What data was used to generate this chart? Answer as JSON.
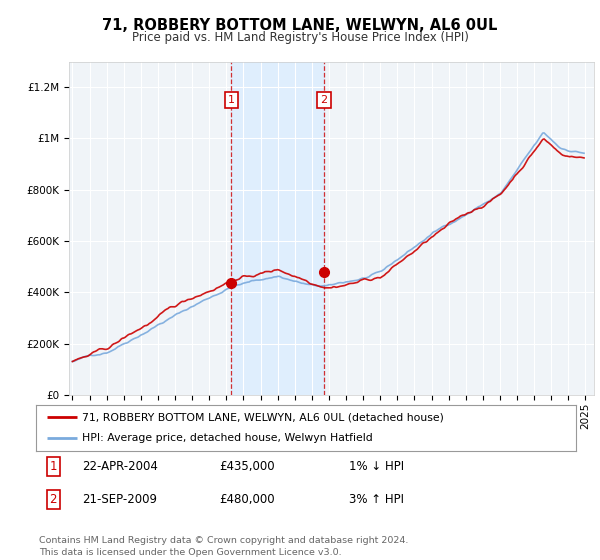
{
  "title": "71, ROBBERY BOTTOM LANE, WELWYN, AL6 0UL",
  "subtitle": "Price paid vs. HM Land Registry's House Price Index (HPI)",
  "legend_line1": "71, ROBBERY BOTTOM LANE, WELWYN, AL6 0UL (detached house)",
  "legend_line2": "HPI: Average price, detached house, Welwyn Hatfield",
  "footnote": "Contains HM Land Registry data © Crown copyright and database right 2024.\nThis data is licensed under the Open Government Licence v3.0.",
  "sale1_label": "1",
  "sale1_date": "22-APR-2004",
  "sale1_price": "£435,000",
  "sale1_hpi": "1% ↓ HPI",
  "sale2_label": "2",
  "sale2_date": "21-SEP-2009",
  "sale2_price": "£480,000",
  "sale2_hpi": "3% ↑ HPI",
  "sale1_year": 2004.3,
  "sale1_value": 435000,
  "sale2_year": 2009.72,
  "sale2_value": 480000,
  "color_red": "#cc0000",
  "color_blue": "#7aaadd",
  "color_shade": "#ddeeff",
  "ylim_min": 0,
  "ylim_max": 1300000,
  "xlim_min": 1994.8,
  "xlim_max": 2025.5,
  "background_color": "#f0f4f8"
}
